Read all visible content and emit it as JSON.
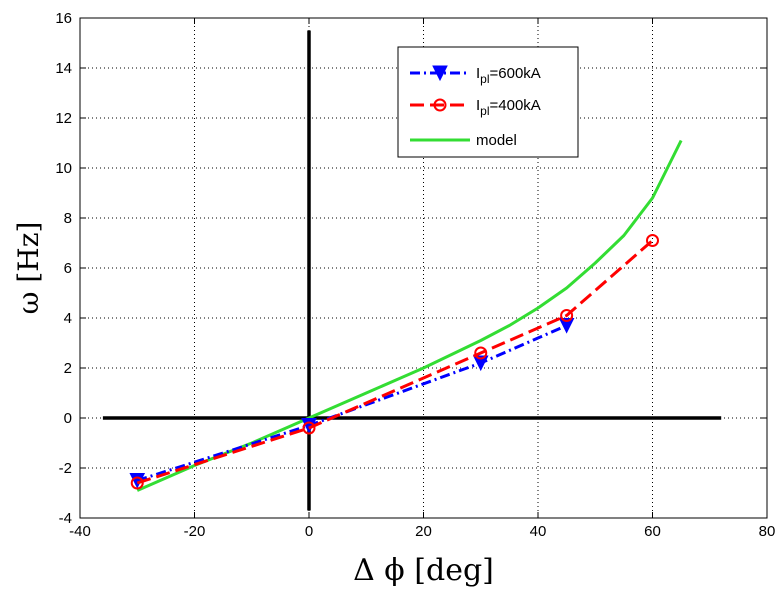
{
  "chart_data": {
    "type": "line",
    "xlabel": "Δ ϕ [deg]",
    "ylabel": "ω [Hz]",
    "xlim": [
      -40,
      80
    ],
    "ylim": [
      -4,
      16
    ],
    "xticks": [
      -40,
      -20,
      0,
      20,
      40,
      60,
      80
    ],
    "yticks": [
      -4,
      -2,
      0,
      2,
      4,
      6,
      8,
      10,
      12,
      14,
      16
    ],
    "grid": true,
    "legend_position": "top-right",
    "reference_lines": [
      {
        "orientation": "horizontal",
        "y": 0,
        "x_range": [
          -36,
          72
        ],
        "color": "#000000"
      },
      {
        "orientation": "vertical",
        "x": 0,
        "y_range": [
          -3.7,
          15.5
        ],
        "color": "#000000"
      }
    ],
    "series": [
      {
        "name_main": "I",
        "name_sub": "pl",
        "name_rest": "=600kA",
        "color": "#0000ff",
        "style": "dash-dot",
        "marker": "triangle-down",
        "x": [
          -30,
          0,
          30,
          45
        ],
        "y": [
          -2.5,
          -0.3,
          2.2,
          3.7
        ]
      },
      {
        "name_main": "I",
        "name_sub": "pl",
        "name_rest": "=400kA",
        "color": "#ff0000",
        "style": "dashed",
        "marker": "circle",
        "x": [
          -30,
          0,
          30,
          45,
          60
        ],
        "y": [
          -2.6,
          -0.4,
          2.6,
          4.1,
          7.1
        ]
      },
      {
        "name_main": "model",
        "name_sub": "",
        "name_rest": "",
        "color": "#33dd33",
        "style": "solid",
        "marker": "none",
        "x": [
          -30,
          -20,
          -10,
          0,
          10,
          20,
          30,
          35,
          40,
          45,
          50,
          55,
          60,
          65
        ],
        "y": [
          -2.9,
          -1.9,
          -1.0,
          0.0,
          1.0,
          2.0,
          3.1,
          3.7,
          4.4,
          5.2,
          6.2,
          7.3,
          8.8,
          11.1
        ]
      }
    ]
  }
}
